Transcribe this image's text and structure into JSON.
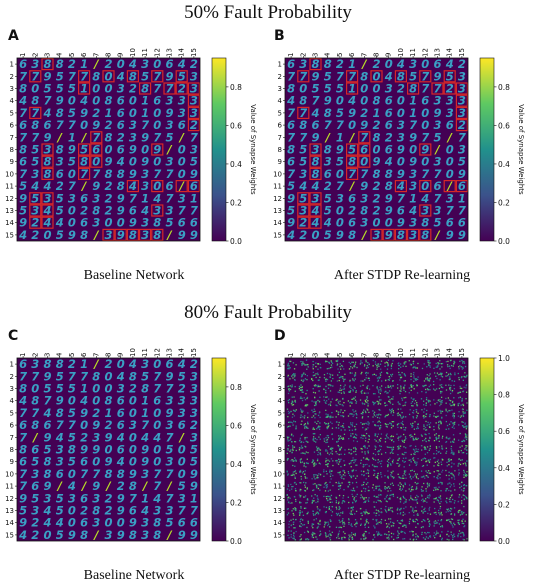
{
  "sections": [
    {
      "title": "50% Fault Probability"
    },
    {
      "title": "80% Fault Probability"
    }
  ],
  "panels": [
    {
      "letter": "A",
      "caption": "Baseline Network",
      "section": 0
    },
    {
      "letter": "B",
      "caption": "After STDP Re-learning",
      "section": 0
    },
    {
      "letter": "C",
      "caption": "Baseline Network",
      "section": 1
    },
    {
      "letter": "D",
      "caption": "After STDP Re-learning",
      "section": 1
    }
  ],
  "chart_data": [
    {
      "type": "heatmap",
      "title": "",
      "grid": "15x15",
      "x_ticks": [
        "1",
        "2",
        "3",
        "4",
        "5",
        "6",
        "7",
        "8",
        "9",
        "10",
        "11",
        "12",
        "13",
        "14",
        "15"
      ],
      "y_ticks": [
        "1",
        "2",
        "3",
        "4",
        "5",
        "6",
        "7",
        "8",
        "9",
        "10",
        "11",
        "12",
        "13",
        "14",
        "15"
      ],
      "digit_rows": [
        "638821/20430642",
        "779577804857953",
        "805551003287723",
        "487904086016333",
        "774859216010933",
        "686770926370362",
        "779/1/7823975/7",
        "853895606909/03",
        "658358094090305",
        "738607788937709",
        "54427/9284306/6",
        "953536329714731",
        "534502829643377",
        "924406300938566",
        "420598/39838/99"
      ],
      "faulty_cells_highlighted": [
        [
          1,
          3
        ],
        [
          2,
          2
        ],
        [
          2,
          6
        ],
        [
          2,
          8
        ],
        [
          2,
          10
        ],
        [
          2,
          12
        ],
        [
          2,
          14
        ],
        [
          3,
          6
        ],
        [
          3,
          11
        ],
        [
          3,
          13
        ],
        [
          3,
          14
        ],
        [
          3,
          15
        ],
        [
          4,
          15
        ],
        [
          5,
          2
        ],
        [
          5,
          15
        ],
        [
          6,
          15
        ],
        [
          7,
          7
        ],
        [
          8,
          3
        ],
        [
          8,
          6
        ],
        [
          8,
          7
        ],
        [
          8,
          12
        ],
        [
          9,
          3
        ],
        [
          9,
          6
        ],
        [
          9,
          7
        ],
        [
          10,
          3
        ],
        [
          10,
          6
        ],
        [
          11,
          10
        ],
        [
          11,
          12
        ],
        [
          11,
          14
        ],
        [
          11,
          15
        ],
        [
          12,
          2
        ],
        [
          12,
          3
        ],
        [
          13,
          2
        ],
        [
          13,
          3
        ],
        [
          13,
          12
        ],
        [
          14,
          2
        ],
        [
          14,
          3
        ],
        [
          15,
          8
        ],
        [
          15,
          9
        ],
        [
          15,
          10
        ],
        [
          15,
          11
        ],
        [
          15,
          12
        ]
      ],
      "colorbar": {
        "label": "Value of Synapse Weights",
        "ticks": [
          "0.0",
          "0.2",
          "0.4",
          "0.6",
          "0.8"
        ],
        "range": [
          0.0,
          0.95
        ]
      }
    },
    {
      "type": "heatmap",
      "title": "",
      "grid": "15x15",
      "x_ticks": [
        "1",
        "2",
        "3",
        "4",
        "5",
        "6",
        "7",
        "8",
        "9",
        "10",
        "11",
        "12",
        "13",
        "14",
        "15"
      ],
      "y_ticks": [
        "1",
        "2",
        "3",
        "4",
        "5",
        "6",
        "7",
        "8",
        "9",
        "10",
        "11",
        "12",
        "13",
        "14",
        "15"
      ],
      "digit_rows": [
        "638821/20430642",
        "779577804857953",
        "805551003287723",
        "487904086016333",
        "774859216010933",
        "686770926370362",
        "779/1/7823975/7",
        "853895606909/03",
        "658358094090305",
        "738607788937709",
        "54427/9284306/6",
        "953536329714731",
        "534502829643377",
        "924406300938566",
        "420598/39838/99"
      ],
      "faulty_cells_highlighted": [
        [
          1,
          3
        ],
        [
          2,
          2
        ],
        [
          2,
          6
        ],
        [
          2,
          8
        ],
        [
          2,
          10
        ],
        [
          2,
          12
        ],
        [
          2,
          14
        ],
        [
          3,
          6
        ],
        [
          3,
          11
        ],
        [
          3,
          13
        ],
        [
          3,
          14
        ],
        [
          3,
          15
        ],
        [
          4,
          15
        ],
        [
          5,
          2
        ],
        [
          5,
          15
        ],
        [
          6,
          15
        ],
        [
          7,
          7
        ],
        [
          8,
          3
        ],
        [
          8,
          6
        ],
        [
          8,
          7
        ],
        [
          8,
          12
        ],
        [
          9,
          3
        ],
        [
          9,
          6
        ],
        [
          9,
          7
        ],
        [
          10,
          3
        ],
        [
          10,
          6
        ],
        [
          11,
          10
        ],
        [
          11,
          12
        ],
        [
          11,
          14
        ],
        [
          11,
          15
        ],
        [
          12,
          2
        ],
        [
          12,
          3
        ],
        [
          13,
          2
        ],
        [
          13,
          3
        ],
        [
          13,
          12
        ],
        [
          14,
          2
        ],
        [
          14,
          3
        ],
        [
          15,
          8
        ],
        [
          15,
          9
        ],
        [
          15,
          10
        ],
        [
          15,
          11
        ],
        [
          15,
          12
        ]
      ],
      "colorbar": {
        "label": "Value of Synapse Weights",
        "ticks": [
          "0.0",
          "0.2",
          "0.4",
          "0.6",
          "0.8"
        ],
        "range": [
          0.0,
          0.95
        ]
      }
    },
    {
      "type": "heatmap",
      "title": "",
      "grid": "15x15",
      "x_ticks": [
        "1",
        "2",
        "3",
        "4",
        "5",
        "6",
        "7",
        "8",
        "9",
        "10",
        "11",
        "12",
        "13",
        "14",
        "15"
      ],
      "y_ticks": [
        "1",
        "2",
        "3",
        "4",
        "5",
        "6",
        "7",
        "8",
        "9",
        "10",
        "11",
        "12",
        "13",
        "14",
        "15"
      ],
      "digit_rows": [
        "638821/20430642",
        "779577804857953",
        "805551003287723",
        "487904086016333",
        "774859216010933",
        "686770926370362",
        "7/94523940447/3",
        "865389906090505",
        "658356094090305",
        "738607788937709",
        "769/4/9/28/7/59",
        "953536329714731",
        "534502829643377",
        "924406300938566",
        "420598/39838/99"
      ],
      "faulty_cells_highlighted": [],
      "colorbar": {
        "label": "Value of Synapse Weights",
        "ticks": [
          "0.0",
          "0.2",
          "0.4",
          "0.6",
          "0.8"
        ],
        "range": [
          0.0,
          0.95
        ]
      }
    },
    {
      "type": "heatmap",
      "title": "",
      "grid": "15x15",
      "x_ticks": [
        "1",
        "2",
        "3",
        "4",
        "5",
        "6",
        "7",
        "8",
        "9",
        "10",
        "11",
        "12",
        "13",
        "14",
        "15"
      ],
      "y_ticks": [
        "1",
        "2",
        "3",
        "4",
        "5",
        "6",
        "7",
        "8",
        "9",
        "10",
        "11",
        "12",
        "13",
        "14",
        "15"
      ],
      "digit_rows": [],
      "faulty_cells_highlighted": [],
      "colorbar": {
        "label": "Value of Synapse Weights",
        "ticks": [
          "0.0",
          "0.2",
          "0.4",
          "0.6",
          "0.8",
          "1.0"
        ],
        "range": [
          0.0,
          1.0
        ]
      }
    }
  ],
  "colors": {
    "background_cell": "#440154",
    "digit_stroke": "#3aa0c4",
    "bright_stroke": "#b8de29",
    "highlight_box": "#d62728",
    "colormap": [
      "#440154",
      "#3b528b",
      "#21918c",
      "#5ec962",
      "#fde725"
    ]
  }
}
